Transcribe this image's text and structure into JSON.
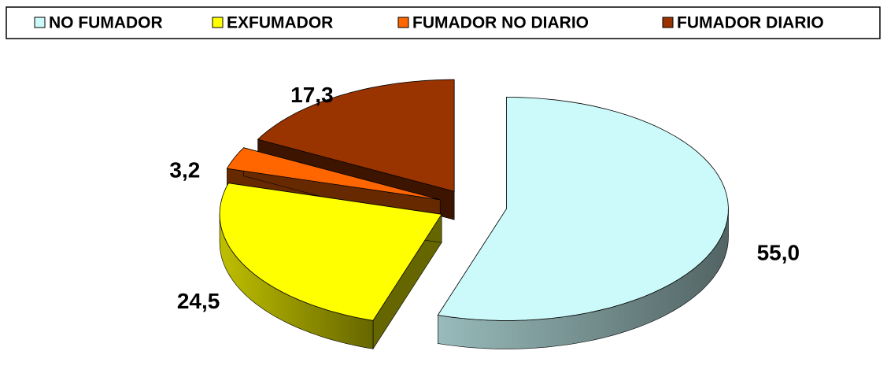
{
  "chart_data": {
    "type": "pie3d",
    "categories": [
      "NO FUMADOR",
      "EXFUMADOR",
      "FUMADOR NO DIARIO",
      "FUMADOR DIARIO"
    ],
    "values": [
      55.0,
      24.5,
      3.2,
      17.3
    ],
    "value_labels": [
      "55,0",
      "24,5",
      "3,2",
      "17,3"
    ],
    "colors": [
      "#ccf9f9",
      "#ffff00",
      "#ff6600",
      "#993300"
    ],
    "legend": "top"
  }
}
